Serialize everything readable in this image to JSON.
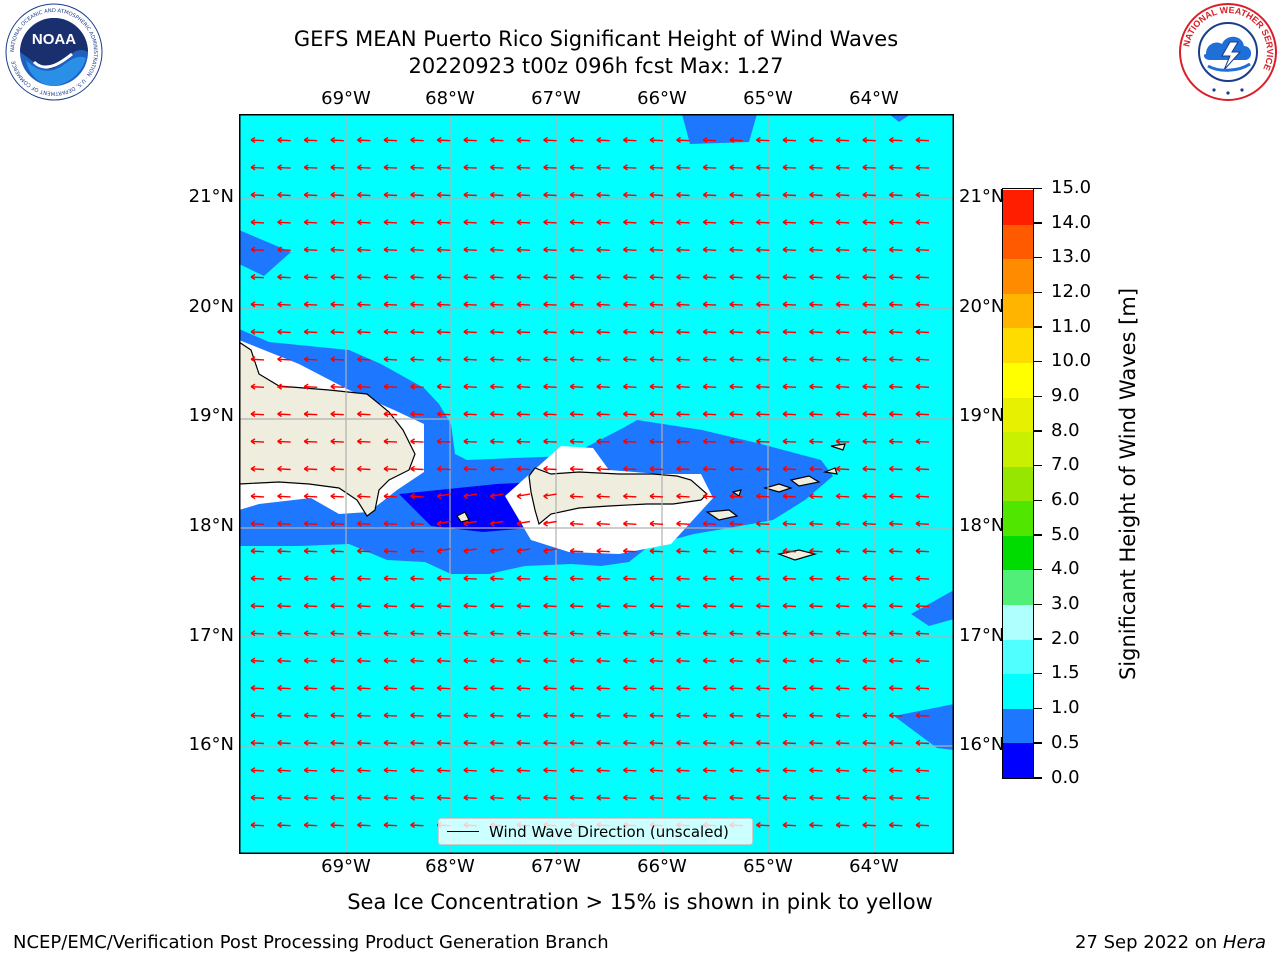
{
  "title": {
    "line1": "GEFS MEAN Puerto Rico Significant Height of Wind Waves",
    "line2": "20220923 t00z 096h fcst   Max: 1.27"
  },
  "axes": {
    "lon_labels": [
      "69°W",
      "68°W",
      "67°W",
      "66°W",
      "65°W",
      "64°W"
    ],
    "lat_labels": [
      "21°N",
      "20°N",
      "19°N",
      "18°N",
      "17°N",
      "16°N"
    ],
    "lon_range": [
      -69.99,
      -63.25
    ],
    "lat_range": [
      15.03,
      21.74
    ],
    "grid": true
  },
  "colorbar": {
    "title": "Significant Height of Wind Waves [m]",
    "levels": [
      "0.0",
      "0.5",
      "1.0",
      "1.5",
      "2.0",
      "3.0",
      "4.0",
      "5.0",
      "6.0",
      "7.0",
      "8.0",
      "9.0",
      "10.0",
      "11.0",
      "12.0",
      "13.0",
      "14.0",
      "15.0"
    ],
    "colors": [
      "#0000ff",
      "#1e78ff",
      "#00ffff",
      "#50ffff",
      "#afffff",
      "#50f078",
      "#00dc00",
      "#50e600",
      "#96e600",
      "#c8f000",
      "#e6f000",
      "#ffff00",
      "#ffdc00",
      "#ffb400",
      "#ff8c00",
      "#ff5a00",
      "#ff1e00"
    ]
  },
  "legend": {
    "label": "Wind Wave Direction (unscaled)"
  },
  "notes": {
    "sea_ice": "Sea Ice Concentration > 15% is shown in pink to yellow"
  },
  "footer": {
    "left": "NCEP/EMC/Verification Post Processing Product Generation Branch",
    "date": "27 Sep 2022 on ",
    "host": "Hera"
  },
  "logos": {
    "noaa": "NOAA",
    "noaa_ring": "NATIONAL OCEANIC AND ATMOSPHERIC ADMINISTRATION · U.S. DEPARTMENT OF COMMERCE",
    "nws_ring": "NATIONAL WEATHER SERVICE"
  },
  "colors": {
    "ocean": "#00ffff",
    "wave_mid": "#1e78ff",
    "wave_low": "#0000ff",
    "land": "#efedde",
    "arrow": "#ff0000",
    "grid": "#b0b0b0"
  }
}
